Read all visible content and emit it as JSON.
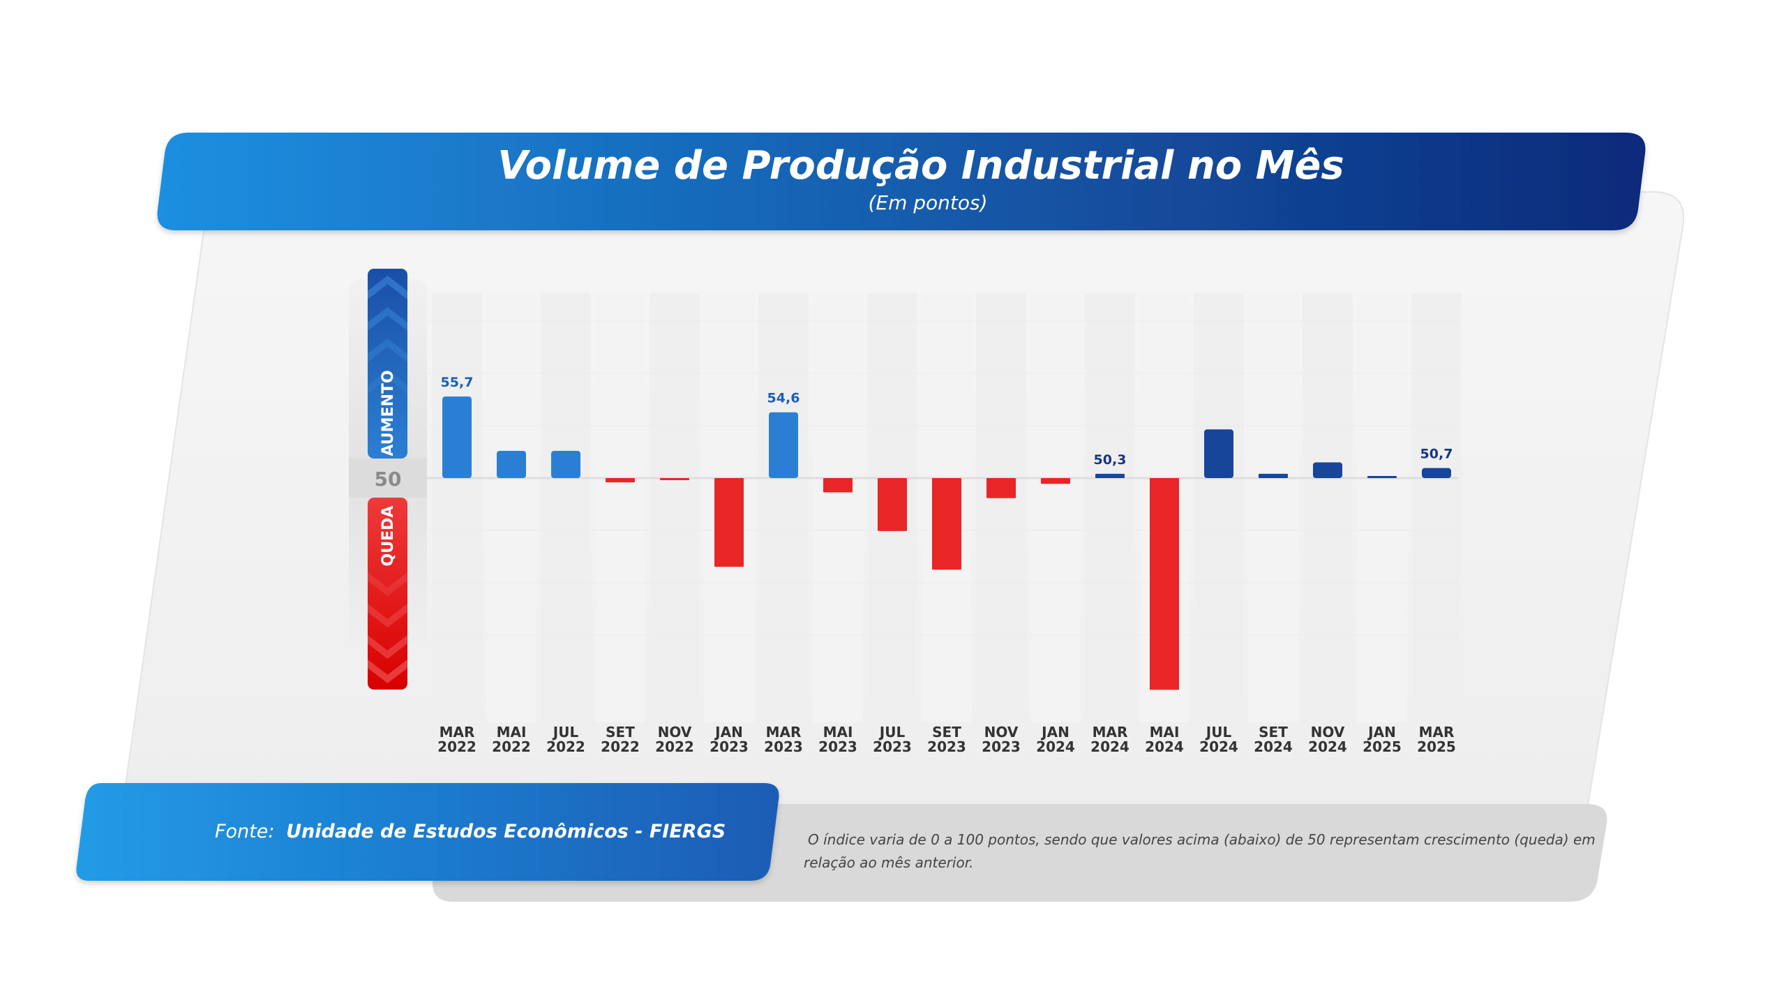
{
  "header": {
    "title": "Volume de Produção Industrial no Mês",
    "subtitle": "(Em pontos)"
  },
  "legend": {
    "up_label": "AUMENTO",
    "down_label": "QUEDA",
    "baseline_label": "50"
  },
  "footer": {
    "source_prefix": "Fonte:",
    "source_name": "Unidade de Estudos Econômicos - FIERGS",
    "note_line1": "O índice varia de 0 a 100 pontos, sendo que valores acima (abaixo) de 50 representam crescimento (queda) em",
    "note_line2": "relação ao mês anterior."
  },
  "colors": {
    "header_start": "#1e8fe0",
    "header_end": "#0d2a7a",
    "bar_up_2022_2023": "#2a7fd4",
    "bar_up_2024_2025": "#17459a",
    "bar_down": "#e82626",
    "label_blue": "#1c5fb0",
    "label_navy": "#17357f"
  },
  "chart_data": {
    "type": "bar",
    "title": "Volume de Produção Industrial no Mês",
    "subtitle": "(Em pontos)",
    "baseline": 50,
    "categories": [
      [
        "MAR",
        "2022"
      ],
      [
        "MAI",
        "2022"
      ],
      [
        "JUL",
        "2022"
      ],
      [
        "SET",
        "2022"
      ],
      [
        "NOV",
        "2022"
      ],
      [
        "JAN",
        "2023"
      ],
      [
        "MAR",
        "2023"
      ],
      [
        "MAI",
        "2023"
      ],
      [
        "JUL",
        "2023"
      ],
      [
        "SET",
        "2023"
      ],
      [
        "NOV",
        "2023"
      ],
      [
        "JAN",
        "2024"
      ],
      [
        "MAR",
        "2024"
      ],
      [
        "MAI",
        "2024"
      ],
      [
        "JUL",
        "2024"
      ],
      [
        "SET",
        "2024"
      ],
      [
        "NOV",
        "2024"
      ],
      [
        "JAN",
        "2025"
      ],
      [
        "MAR",
        "2025"
      ]
    ],
    "values": [
      55.7,
      51.9,
      51.9,
      49.7,
      49.9,
      43.8,
      54.6,
      49.0,
      46.3,
      43.6,
      48.6,
      49.6,
      50.3,
      35.2,
      53.4,
      50.3,
      51.1,
      50.1,
      50.7
    ],
    "data_labels": [
      "55,7",
      "",
      "",
      "",
      "",
      "",
      "54,6",
      "",
      "",
      "",
      "",
      "",
      "50,3",
      "",
      "",
      "",
      "",
      "",
      "50,7"
    ],
    "ylim": [
      35,
      62
    ]
  }
}
